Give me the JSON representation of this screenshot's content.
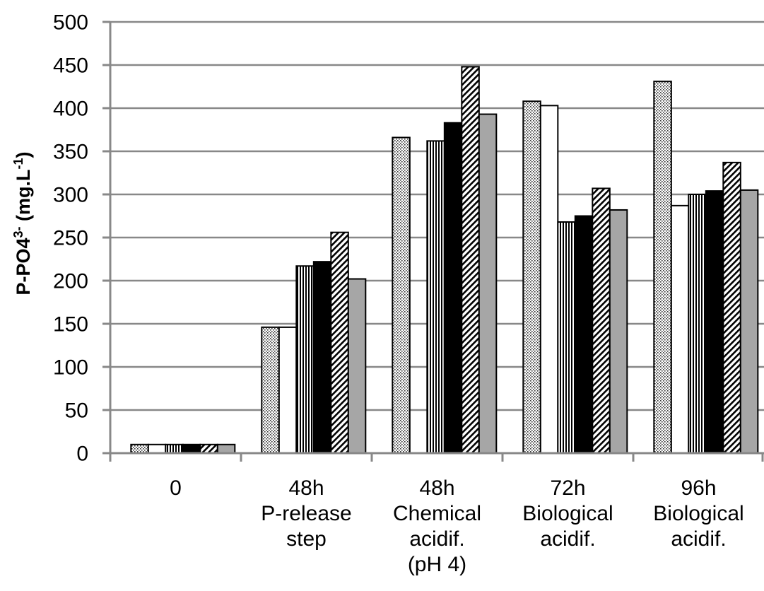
{
  "chart_data": {
    "type": "bar",
    "ylabel": {
      "main": "P-PO4",
      "sup1": "3-",
      "mid": " (mg.L",
      "sup2": "-1",
      "end": ")"
    },
    "ylim": [
      0,
      500
    ],
    "y_ticks": [
      "0",
      "50",
      "100",
      "150",
      "200",
      "250",
      "300",
      "350",
      "400",
      "450",
      "500"
    ],
    "grid": true,
    "legend": "none",
    "categories": [
      [
        "0"
      ],
      [
        "48h",
        "P-release",
        "step"
      ],
      [
        "48h",
        "Chemical",
        "acidif.",
        "(pH 4)"
      ],
      [
        "72h",
        "Biological",
        "acidif."
      ],
      [
        "96h",
        "Biological",
        "acidif."
      ]
    ],
    "series": [
      {
        "fill": "dots",
        "values": [
          10,
          146,
          366,
          408,
          431
        ]
      },
      {
        "fill": "white",
        "values": [
          10,
          146,
          0,
          403,
          287
        ]
      },
      {
        "fill": "vertical-lines",
        "values": [
          10,
          217,
          362,
          268,
          300
        ]
      },
      {
        "fill": "black",
        "values": [
          10,
          222,
          383,
          275,
          304
        ]
      },
      {
        "fill": "diagonal-hatch",
        "values": [
          10,
          256,
          448,
          307,
          337
        ]
      },
      {
        "fill": "gray",
        "values": [
          10,
          202,
          393,
          282,
          305
        ]
      }
    ],
    "colors": {
      "axis": "#888888",
      "grid": "#888888",
      "gray": "#a6a6a6",
      "black": "#000000"
    }
  }
}
